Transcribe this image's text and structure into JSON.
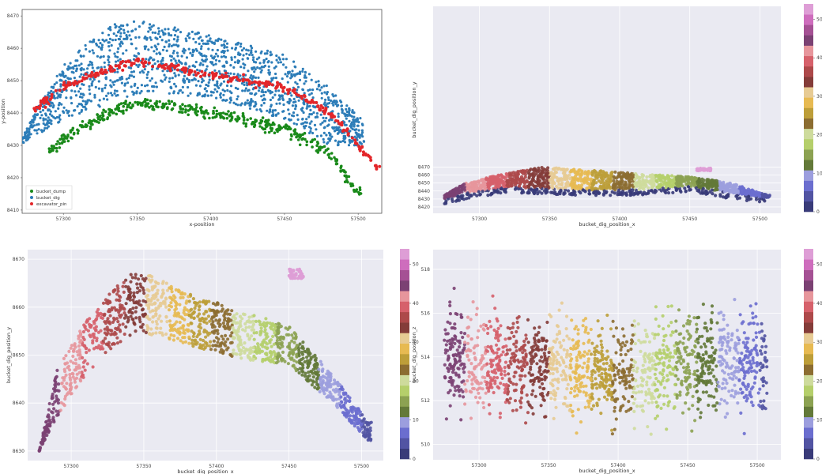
{
  "chart_data": [
    {
      "type": "scatter",
      "panel": "top-left",
      "style": "white-background-boxed",
      "xlabel": "x-position",
      "ylabel": "y-position",
      "xlim": [
        57272,
        57516
      ],
      "ylim": [
        8409,
        8472
      ],
      "xticks": [
        57300,
        57350,
        57400,
        57450,
        57500
      ],
      "yticks": [
        8410,
        8420,
        8430,
        8440,
        8450,
        8460,
        8470
      ],
      "legend": "bottom-left",
      "series": [
        {
          "name": "bucket_dump",
          "color": "#1a8a1a",
          "marker": "dot"
        },
        {
          "name": "bucket_dig",
          "color": "#2d7db8",
          "marker": "dot"
        },
        {
          "name": "excavator_pin",
          "color": "#e3262a",
          "marker": "dot"
        }
      ],
      "curves": {
        "bucket_dig_top": [
          [
            57270,
            8432
          ],
          [
            57300,
            8455
          ],
          [
            57330,
            8467
          ],
          [
            57350,
            8469
          ],
          [
            57400,
            8464
          ],
          [
            57450,
            8458
          ],
          [
            57480,
            8448
          ],
          [
            57510,
            8435
          ]
        ],
        "bucket_dig_bottom": [
          [
            57270,
            8430
          ],
          [
            57300,
            8438
          ],
          [
            57350,
            8446
          ],
          [
            57400,
            8445
          ],
          [
            57450,
            8438
          ],
          [
            57480,
            8430
          ],
          [
            57510,
            8430
          ]
        ],
        "excavator_pin": [
          [
            57280,
            8441
          ],
          [
            57300,
            8448
          ],
          [
            57320,
            8452
          ],
          [
            57350,
            8456
          ],
          [
            57400,
            8452
          ],
          [
            57450,
            8448
          ],
          [
            57480,
            8440
          ],
          [
            57500,
            8430
          ],
          [
            57515,
            8422
          ]
        ],
        "bucket_dump": [
          [
            57290,
            8428
          ],
          [
            57300,
            8432
          ],
          [
            57330,
            8440
          ],
          [
            57350,
            8443
          ],
          [
            57400,
            8440
          ],
          [
            57450,
            8435
          ],
          [
            57480,
            8428
          ],
          [
            57500,
            8415
          ]
        ]
      }
    },
    {
      "type": "scatter",
      "panel": "top-right",
      "style": "seaborn-gray",
      "xlabel": "bucket_dig_position_x",
      "ylabel": "bucket_dig_position_y",
      "xlim": [
        57267,
        57515
      ],
      "ylim": [
        8412,
        8672
      ],
      "xticks": [
        57300,
        57350,
        57400,
        57450,
        57500
      ],
      "yticks": [
        8420,
        8430,
        8440,
        8450,
        8460,
        8470
      ],
      "curves": {
        "top": [
          [
            57270,
            8430
          ],
          [
            57290,
            8450
          ],
          [
            57320,
            8463
          ],
          [
            57345,
            8470
          ],
          [
            57380,
            8466
          ],
          [
            57420,
            8461
          ],
          [
            57450,
            8458
          ],
          [
            57480,
            8450
          ],
          [
            57505,
            8435
          ]
        ],
        "bottom": [
          [
            57270,
            8428
          ],
          [
            57290,
            8438
          ],
          [
            57320,
            8446
          ],
          [
            57380,
            8442
          ],
          [
            57420,
            8443
          ],
          [
            57450,
            8447
          ],
          [
            57480,
            8438
          ],
          [
            57505,
            8432
          ]
        ]
      },
      "colorbar": {
        "min": 0,
        "max": 54,
        "ticks": [
          0,
          10,
          20,
          30,
          40,
          50
        ]
      }
    },
    {
      "type": "scatter",
      "panel": "bottom-left",
      "style": "seaborn-gray",
      "xlabel": "bucket_dig_position_x",
      "ylabel": "bucket_dig_position_y",
      "xlim": [
        57270,
        57515
      ],
      "ylim": [
        8628,
        8672
      ],
      "xticks": [
        57300,
        57350,
        57400,
        57450,
        57500
      ],
      "yticks": [
        8630,
        8640,
        8650,
        8660,
        8670
      ],
      "curves": {
        "top": [
          [
            57278,
            8630
          ],
          [
            57290,
            8647
          ],
          [
            57310,
            8657
          ],
          [
            57330,
            8664
          ],
          [
            57345,
            8668
          ],
          [
            57380,
            8663
          ],
          [
            57420,
            8659
          ],
          [
            57450,
            8656
          ],
          [
            57480,
            8646
          ],
          [
            57505,
            8636
          ]
        ],
        "bottom": [
          [
            57278,
            8630
          ],
          [
            57290,
            8637
          ],
          [
            57310,
            8646
          ],
          [
            57330,
            8652
          ],
          [
            57345,
            8655
          ],
          [
            57380,
            8652
          ],
          [
            57420,
            8649
          ],
          [
            57450,
            8648
          ],
          [
            57480,
            8640
          ],
          [
            57505,
            8632
          ]
        ]
      },
      "colorbar": {
        "min": 0,
        "max": 54,
        "ticks": [
          0,
          10,
          20,
          30,
          40,
          50
        ]
      }
    },
    {
      "type": "scatter",
      "panel": "bottom-right",
      "style": "seaborn-gray",
      "xlabel": "bucket_dig_position_x",
      "ylabel": "bucket_dig_position_z",
      "xlim": [
        57267,
        57517
      ],
      "ylim": [
        509.3,
        518.9
      ],
      "xticks": [
        57300,
        57350,
        57400,
        57450,
        57500
      ],
      "yticks": [
        510,
        512,
        514,
        516,
        518
      ],
      "band": {
        "center": [
          [
            57270,
            514
          ],
          [
            57350,
            513.5
          ],
          [
            57400,
            513.2
          ],
          [
            57450,
            513.8
          ],
          [
            57500,
            513.6
          ]
        ],
        "spread": 1.8
      },
      "colorbar": {
        "min": 0,
        "max": 54,
        "ticks": [
          0,
          10,
          20,
          30,
          40,
          50
        ]
      }
    }
  ],
  "palette": [
    "#393b79",
    "#5254a3",
    "#6b6ecf",
    "#9c9ede",
    "#637939",
    "#8ca252",
    "#b5cf6b",
    "#cedb9c",
    "#8c6d31",
    "#bd9e39",
    "#e7ba52",
    "#e7cb94",
    "#843c39",
    "#ad494a",
    "#d6616b",
    "#e7969c",
    "#7b4173",
    "#a55194",
    "#ce6dbd",
    "#de9ed6"
  ]
}
